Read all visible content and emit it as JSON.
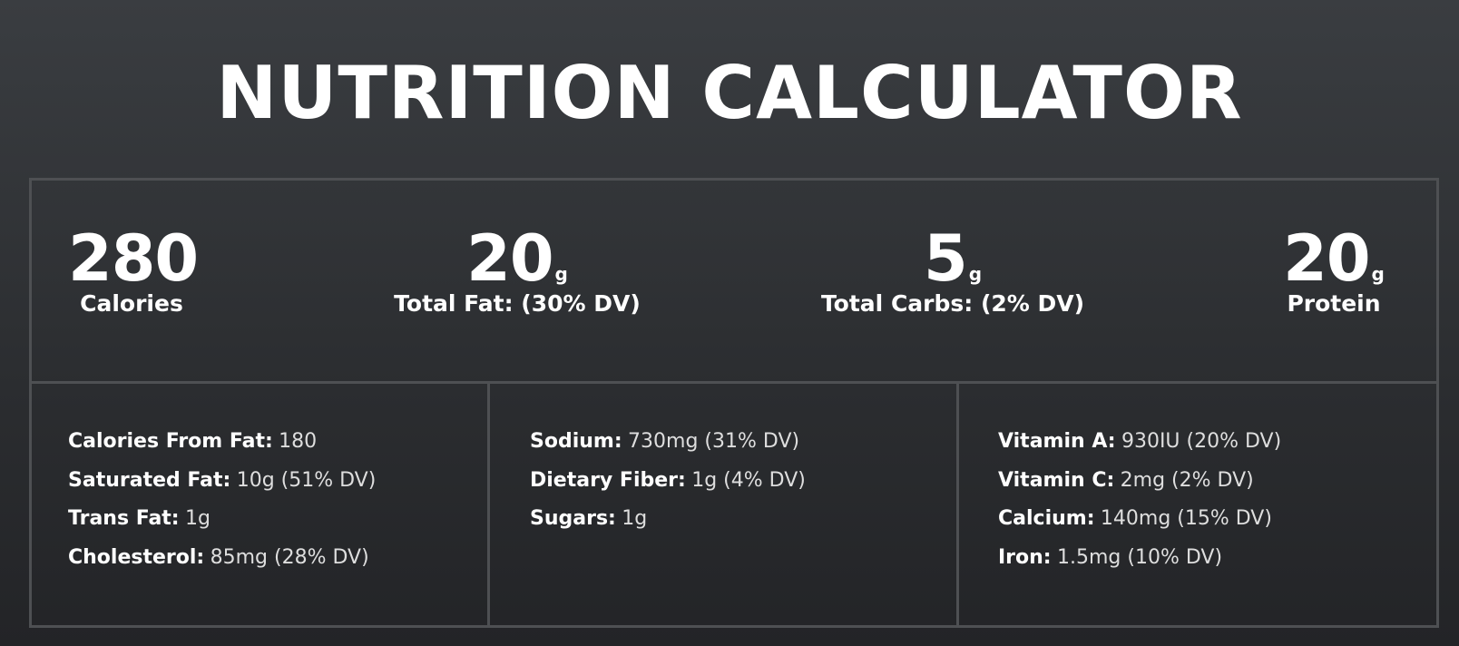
{
  "title": "NUTRITION CALCULATOR",
  "summary": [
    {
      "value": "280",
      "unit": "",
      "label": "Calories"
    },
    {
      "value": "20",
      "unit": "g",
      "label": "Total Fat: (30% DV)"
    },
    {
      "value": "5",
      "unit": "g",
      "label": "Total Carbs: (2% DV)"
    },
    {
      "value": "20",
      "unit": "g",
      "label": "Protein"
    }
  ],
  "details": {
    "col1": [
      {
        "label": "Calories From Fat:",
        "value": "180"
      },
      {
        "label": "Saturated Fat:",
        "value": "10g (51% DV)"
      },
      {
        "label": "Trans Fat:",
        "value": "1g"
      },
      {
        "label": "Cholesterol:",
        "value": "85mg (28% DV)"
      }
    ],
    "col2": [
      {
        "label": "Sodium:",
        "value": "730mg (31% DV)"
      },
      {
        "label": "Dietary Fiber:",
        "value": "1g (4% DV)"
      },
      {
        "label": "Sugars:",
        "value": "1g"
      }
    ],
    "col3": [
      {
        "label": "Vitamin A:",
        "value": "930IU (20% DV)"
      },
      {
        "label": "Vitamin C:",
        "value": "2mg (2% DV)"
      },
      {
        "label": "Calcium:",
        "value": "140mg (15% DV)"
      },
      {
        "label": "Iron:",
        "value": "1.5mg (10% DV)"
      }
    ]
  }
}
